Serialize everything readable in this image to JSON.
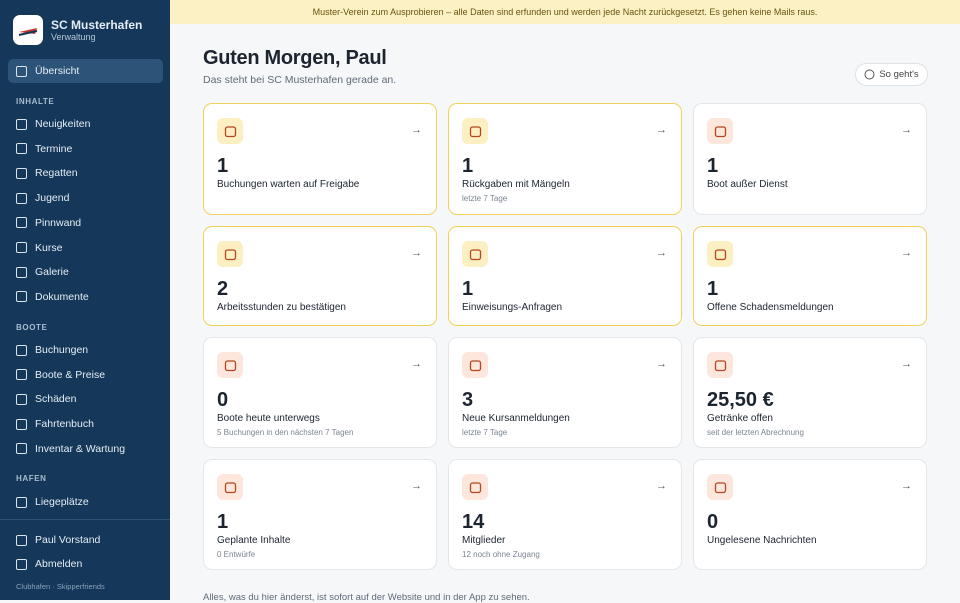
{
  "sidebar": {
    "brand": {
      "name": "SC Musterhafen",
      "subtitle": "Verwaltung"
    },
    "active": "Übersicht",
    "sections": [
      {
        "title": "INHALTE",
        "items": [
          "Neuigkeiten",
          "Termine",
          "Regatten",
          "Jugend",
          "Pinnwand",
          "Kurse",
          "Galerie",
          "Dokumente"
        ]
      },
      {
        "title": "BOOTE",
        "items": [
          "Buchungen",
          "Boote & Preise",
          "Schäden",
          "Fahrtenbuch",
          "Inventar & Wartung"
        ]
      },
      {
        "title": "HAFEN",
        "items": [
          "Liegeplätze"
        ]
      }
    ],
    "user": "Paul Vorstand",
    "logout": "Abmelden",
    "footer": "Clubhafen · Skipperfriends"
  },
  "banner": "Muster-Verein zum Ausprobieren – alle Daten sind erfunden und werden jede Nacht zurückgesetzt. Es gehen keine Mails raus.",
  "header": {
    "title": "Guten Morgen, Paul",
    "subtitle": "Das steht bei SC Musterhafen gerade an.",
    "help": "So geht's"
  },
  "cards": [
    {
      "value": 1,
      "label": "Buchungen warten auf Freigabe",
      "highlighted": true
    },
    {
      "value": 1,
      "label": "Rückgaben mit Mängeln",
      "note": "letzte 7 Tage",
      "highlighted": true
    },
    {
      "value": 1,
      "label": "Boot außer Dienst",
      "highlighted": false
    },
    {
      "value": 2,
      "label": "Arbeitsstunden zu bestätigen",
      "highlighted": true
    },
    {
      "value": 1,
      "label": "Einweisungs-Anfragen",
      "highlighted": true
    },
    {
      "value": 1,
      "label": "Offene Schadensmeldungen",
      "highlighted": true
    },
    {
      "value": 0,
      "label": "Boote heute unterwegs",
      "note": "5 Buchungen in den nächsten 7 Tagen",
      "highlighted": false
    },
    {
      "value": 3,
      "label": "Neue Kursanmeldungen",
      "note": "letzte 7 Tage",
      "highlighted": false
    },
    {
      "value": "25,50 €",
      "label": "Getränke offen",
      "note": "seit der letzten Abrechnung",
      "highlighted": false
    },
    {
      "value": 1,
      "label": "Geplante Inhalte",
      "note": "0 Entwürfe",
      "highlighted": false
    },
    {
      "value": 14,
      "label": "Mitglieder",
      "note": "12 noch ohne Zugang",
      "highlighted": false
    },
    {
      "value": 0,
      "label": "Ungelesene Nachrichten",
      "highlighted": false
    }
  ],
  "footer_note": "Alles, was du hier änderst, ist sofort auf der Website und in der App zu sehen."
}
